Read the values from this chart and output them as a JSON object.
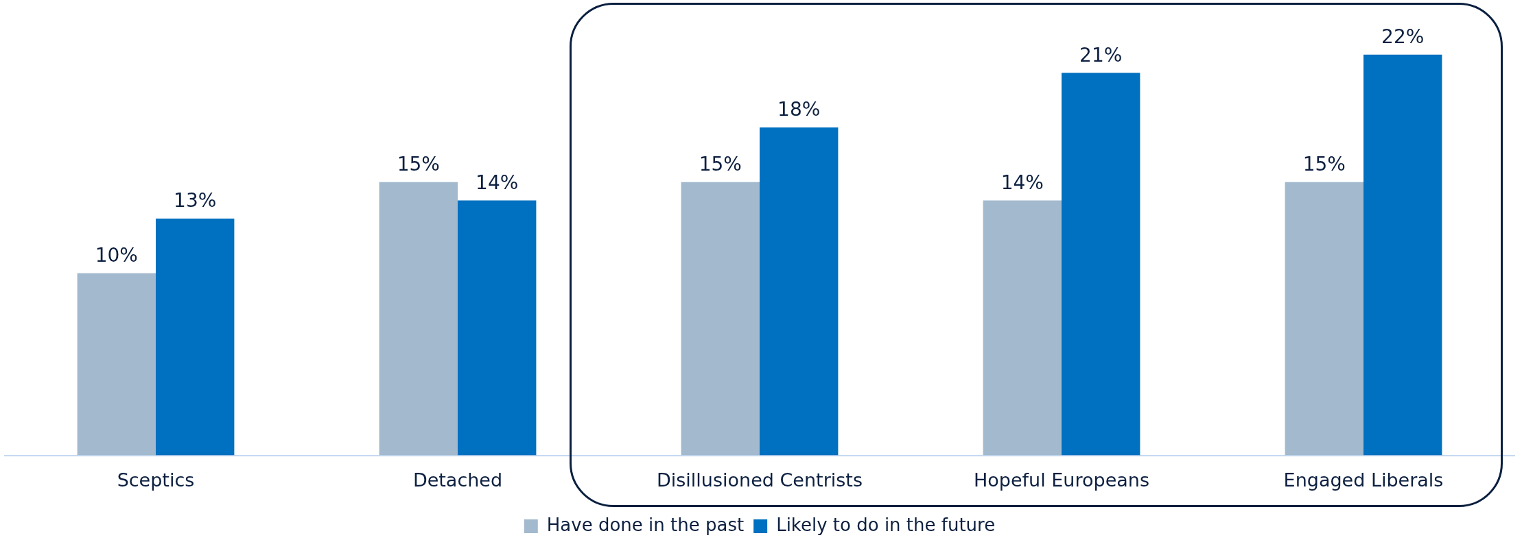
{
  "chart_data": {
    "type": "bar",
    "categories": [
      "Sceptics",
      "Detached",
      "Disillusioned Centrists",
      "Hopeful Europeans",
      "Engaged Liberals"
    ],
    "series": [
      {
        "name": "Have done in the past",
        "color": "#a3b9cd",
        "values": [
          10,
          15,
          15,
          14,
          15
        ],
        "value_labels": [
          "10%",
          "15%",
          "15%",
          "14%",
          "15%"
        ]
      },
      {
        "name": "Likely to do in the future",
        "color": "#0070c0",
        "values": [
          13,
          14,
          18,
          21,
          22
        ],
        "value_labels": [
          "13%",
          "14%",
          "18%",
          "21%",
          "22%"
        ]
      }
    ],
    "legend": "bottom",
    "grid": false
  }
}
